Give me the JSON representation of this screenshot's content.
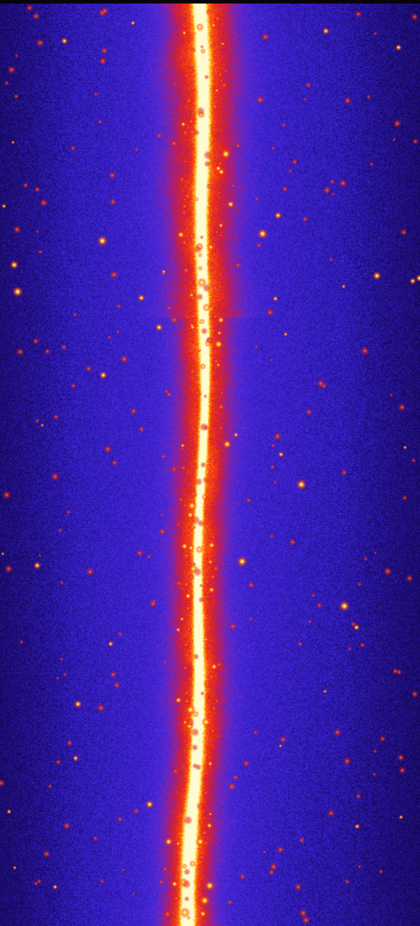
{
  "image": {
    "kind": "false-color all-sky map strip (vertical band of galactic plane)",
    "palette": {
      "background_deep": "#1a0a6a",
      "background_mid": "#3a23d8",
      "glow_outer": "#5a2ad0",
      "band_red": "#e0201c",
      "band_orange": "#ff5a14",
      "band_yellow": "#ffd21e",
      "core_white": "#fffbd0",
      "edge_dark": "#06030c"
    },
    "features": [
      "bright-vertical-band",
      "diffuse-red-emission",
      "point-sources",
      "blue-noise-background"
    ]
  }
}
